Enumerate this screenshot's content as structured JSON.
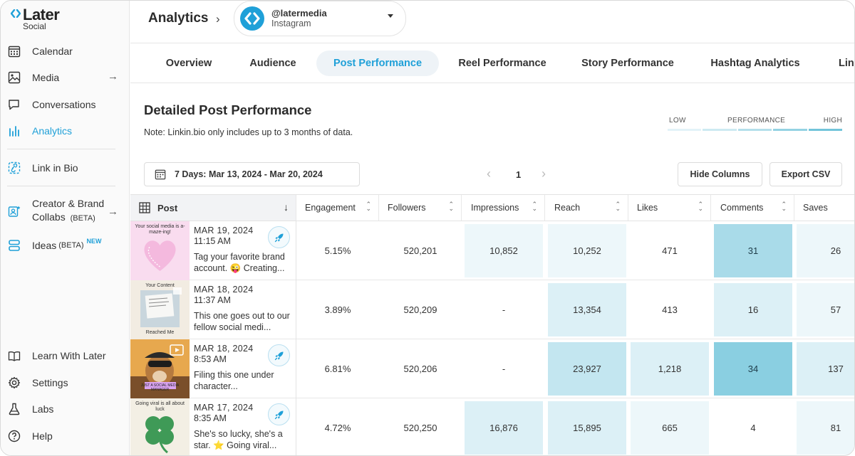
{
  "brand": {
    "name": "Later",
    "sub": "Social"
  },
  "sidebar": {
    "items": [
      {
        "label": "Calendar",
        "icon": "calendar-icon"
      },
      {
        "label": "Media",
        "icon": "media-icon",
        "arrow": "→"
      },
      {
        "label": "Conversations",
        "icon": "chat-icon"
      },
      {
        "label": "Analytics",
        "icon": "analytics-icon",
        "active": true
      },
      {
        "label": "Link in Bio",
        "icon": "link-in-bio-icon"
      },
      {
        "label": "Creator & Brand",
        "label2": "Collabs",
        "badge": "(BETA)",
        "icon": "collabs-icon",
        "arrow": "→"
      },
      {
        "label": "Ideas",
        "badge": "(BETA)",
        "new": "NEW",
        "icon": "ideas-icon"
      }
    ],
    "bottom": [
      {
        "label": "Learn With Later",
        "icon": "book-icon"
      },
      {
        "label": "Settings",
        "icon": "gear-icon"
      },
      {
        "label": "Labs",
        "icon": "flask-icon"
      },
      {
        "label": "Help",
        "icon": "help-icon"
      }
    ]
  },
  "header": {
    "title": "Analytics",
    "chevron": "›",
    "account": {
      "handle": "@latermedia",
      "platform": "Instagram"
    }
  },
  "tabs": [
    "Overview",
    "Audience",
    "Post Performance",
    "Reel Performance",
    "Story Performance",
    "Hashtag Analytics",
    "Linkin.bio"
  ],
  "active_tab": "Post Performance",
  "section": {
    "title": "Detailed Post Performance",
    "note": "Note: Linkin.bio only includes up to 3 months of data."
  },
  "legend": {
    "low": "LOW",
    "mid": "PERFORMANCE",
    "high": "HIGH",
    "colors": [
      "#e3f3f8",
      "#cdeaf2",
      "#b4dfeb",
      "#94d2e3",
      "#72c4da"
    ]
  },
  "controls": {
    "date_range": "7 Days: Mar 13, 2024 - Mar 20, 2024",
    "page": "1",
    "prev": "‹",
    "next": "›",
    "hide_columns": "Hide Columns",
    "export_csv": "Export CSV"
  },
  "table": {
    "post_header": "Post",
    "columns": [
      "Engagement",
      "Followers",
      "Impressions",
      "Reach",
      "Likes",
      "Comments",
      "Saves"
    ],
    "rows": [
      {
        "date": "MAR 19, 2024",
        "time": "11:15 AM",
        "caption": "Tag your favorite brand account. 😜  Creating...",
        "thumb_text": "Your social media is a-maze-ing!",
        "values": [
          "5.15%",
          "520,201",
          "10,852",
          "10,252",
          "471",
          "31",
          "26"
        ],
        "levels": [
          0,
          0,
          1,
          1,
          0,
          4,
          1
        ]
      },
      {
        "date": "MAR 18, 2024",
        "time": "11:37 AM",
        "caption": "This one goes out to our fellow social medi...",
        "thumb_text": "Your Content",
        "thumb_text2": "Reached Me",
        "values": [
          "3.89%",
          "520,209",
          "-",
          "13,354",
          "413",
          "16",
          "57"
        ],
        "levels": [
          0,
          0,
          0,
          2,
          0,
          2,
          1
        ]
      },
      {
        "date": "MAR 18, 2024",
        "time": "8:53 AM",
        "caption": "Filing this one under character...",
        "thumb_text": "JUST A SOCIAL MEDIA MANAGER",
        "values": [
          "6.81%",
          "520,206",
          "-",
          "23,927",
          "1,218",
          "34",
          "137"
        ],
        "levels": [
          0,
          0,
          0,
          3,
          2,
          5,
          2
        ]
      },
      {
        "date": "MAR 17, 2024",
        "time": "8:35 AM",
        "caption": "She's so lucky, she's a star. ⭐  Going viral...",
        "thumb_text": "Going viral is all about luck",
        "values": [
          "4.72%",
          "520,250",
          "16,876",
          "15,895",
          "665",
          "4",
          "81"
        ],
        "levels": [
          0,
          0,
          2,
          2,
          1,
          0,
          1
        ]
      }
    ]
  }
}
